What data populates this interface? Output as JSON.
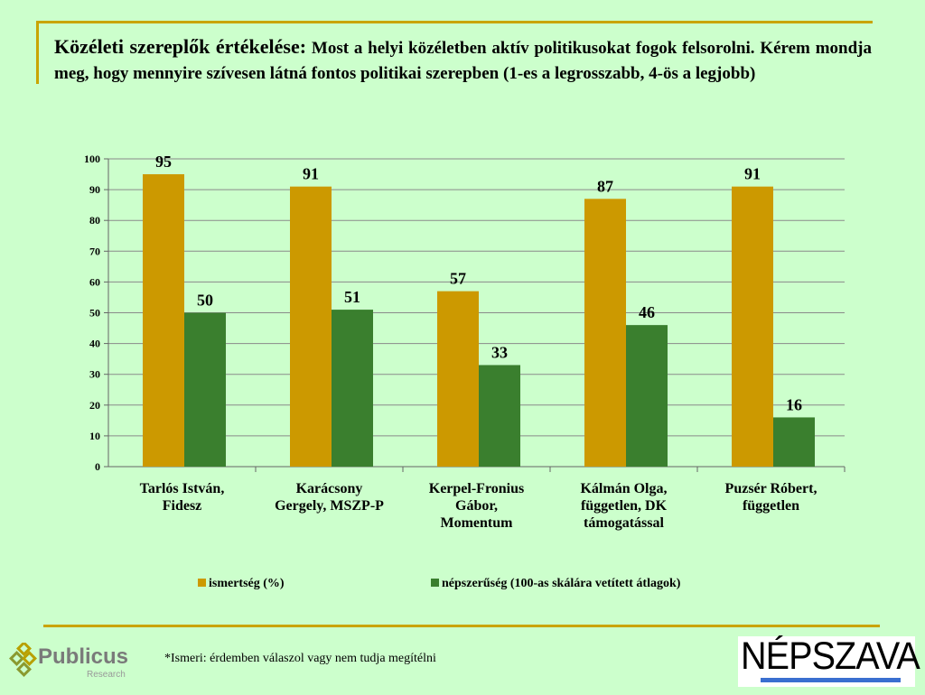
{
  "header": {
    "title_bold": "Közéleti szereplők értékelése:",
    "title_rest": " Most a helyi közéletben aktív politikusokat fogok felsorolni. Kérem mondja meg, hogy mennyire szívesen látná fontos politikai szerepben (1-es a legrosszabb, 4-ös a legjobb)"
  },
  "footer": {
    "footnote": "*Ismeri: érdemben válaszol vagy nem tudja megítélni",
    "publicus_name": "Publicus",
    "publicus_sub": "Research",
    "nepszava": "NÉPSZAVA"
  },
  "colors": {
    "ismertseg": "#cc9900",
    "nepszeruseg": "#3a7f2e",
    "background": "#ccffcc"
  },
  "chart_data": {
    "type": "bar",
    "categories": [
      [
        "Tarlós István,",
        "Fidesz"
      ],
      [
        "Karácsony",
        "Gergely, MSZP-P"
      ],
      [
        "Kerpel-Fronius",
        "Gábor,",
        "Momentum"
      ],
      [
        "Kálmán Olga,",
        "független, DK",
        "támogatással"
      ],
      [
        "Puzsér Róbert,",
        "független"
      ]
    ],
    "series": [
      {
        "name": "ismertség (%)",
        "values": [
          95,
          91,
          57,
          87,
          91
        ]
      },
      {
        "name": "népszerűség (100-as skálára vetített átlagok)",
        "values": [
          50,
          51,
          33,
          46,
          16
        ]
      }
    ],
    "ylim": [
      0,
      100
    ],
    "yticks": [
      0,
      10,
      20,
      30,
      40,
      50,
      60,
      70,
      80,
      90,
      100
    ],
    "grid": true,
    "legend": "bottom"
  }
}
